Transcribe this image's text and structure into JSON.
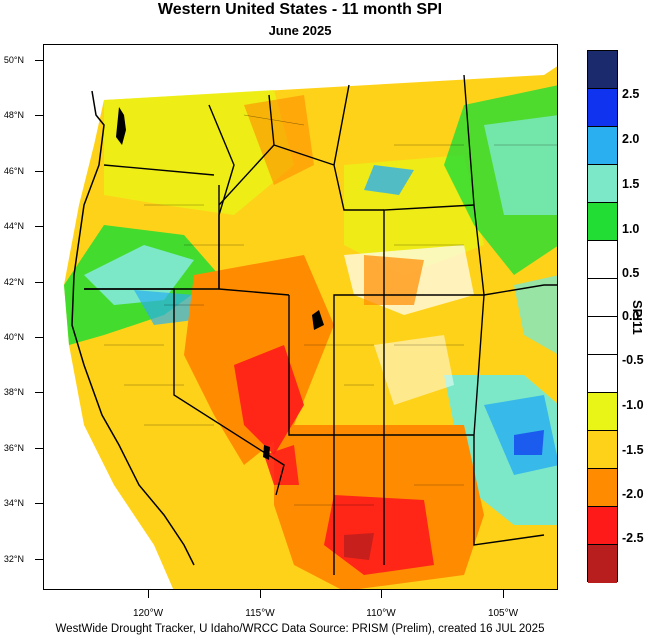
{
  "title": "Western United States - 11 month SPI",
  "subtitle": "June 2025",
  "footer": "WestWide Drought Tracker, U Idaho/WRCC Data Source: PRISM (Prelim), created 16 JUL 2025",
  "lat_labels": [
    "50°N",
    "48°N",
    "46°N",
    "44°N",
    "42°N",
    "40°N",
    "38°N",
    "36°N",
    "34°N",
    "32°N"
  ],
  "lon_labels": [
    "120°W",
    "115°W",
    "110°W",
    "105°W"
  ],
  "colorbar": {
    "title": "SPI11",
    "labels": [
      "2.5",
      "2.0",
      "1.5",
      "1.0",
      "0.5",
      "0.0",
      "-0.5",
      "-1.0",
      "-1.5",
      "-2.0",
      "-2.5"
    ],
    "colors": [
      "#1a2a6c",
      "#1033f0",
      "#2ab0f0",
      "#7de8c8",
      "#22dd33",
      "#ffffff",
      "#ffffff",
      "#e8f516",
      "#ffd21a",
      "#ff8c00",
      "#ff1a1a",
      "#b81e1e"
    ]
  },
  "map_legend_regions": {
    "wet_color": "#7de8c8",
    "dry_color": "#ff8c00"
  }
}
